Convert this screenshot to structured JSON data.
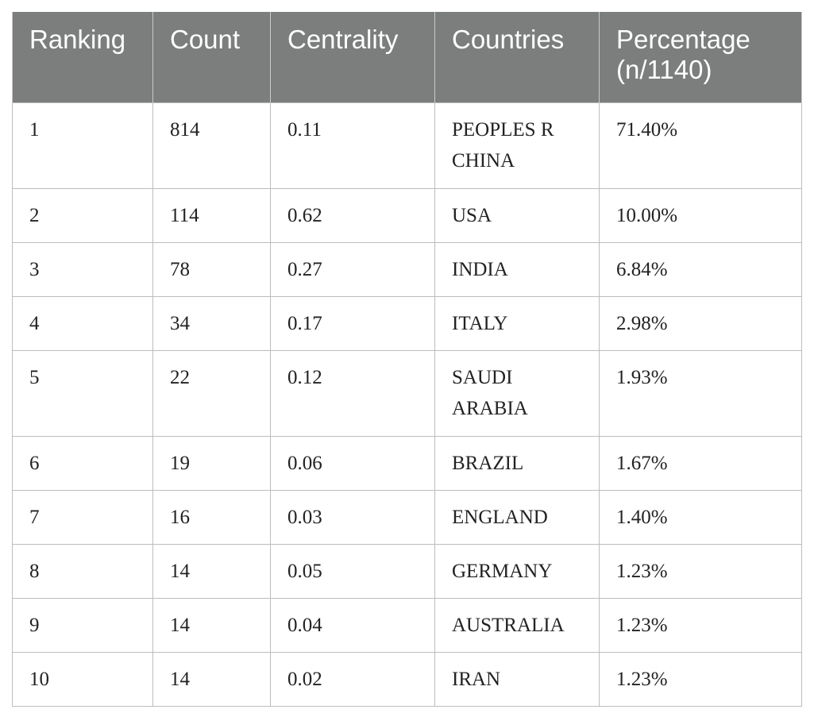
{
  "table": {
    "headers": [
      "Ranking",
      "Count",
      "Centrality",
      "Countries",
      "Percentage (n/1140)"
    ],
    "rows": [
      [
        "1",
        "814",
        "0.11",
        "PEOPLES R CHINA",
        "71.40%"
      ],
      [
        "2",
        "114",
        "0.62",
        "USA",
        "10.00%"
      ],
      [
        "3",
        "78",
        "0.27",
        "INDIA",
        "6.84%"
      ],
      [
        "4",
        "34",
        "0.17",
        "ITALY",
        "2.98%"
      ],
      [
        "5",
        "22",
        "0.12",
        "SAUDI ARABIA",
        "1.93%"
      ],
      [
        "6",
        "19",
        "0.06",
        "BRAZIL",
        "1.67%"
      ],
      [
        "7",
        "16",
        "0.03",
        "ENGLAND",
        "1.40%"
      ],
      [
        "8",
        "14",
        "0.05",
        "GERMANY",
        "1.23%"
      ],
      [
        "9",
        "14",
        "0.04",
        "AUSTRALIA",
        "1.23%"
      ],
      [
        "10",
        "14",
        "0.02",
        "IRAN",
        "1.23%"
      ]
    ]
  },
  "colors": {
    "header_bg": "#7b7e7d",
    "header_text": "#ffffff",
    "grid": "#bdbdbd"
  }
}
